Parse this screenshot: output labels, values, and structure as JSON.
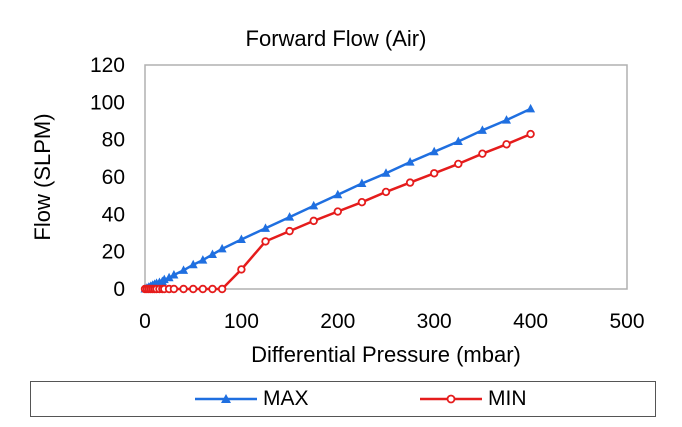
{
  "chart_data": {
    "type": "line",
    "title": "Forward Flow (Air)",
    "xlabel": "Differential Pressure (mbar)",
    "ylabel": "Flow (SLPM)",
    "xlim": [
      0,
      500
    ],
    "ylim": [
      0,
      120
    ],
    "xticks": [
      "0",
      "100",
      "200",
      "300",
      "400",
      "500"
    ],
    "yticks": [
      "0",
      "20",
      "40",
      "60",
      "80",
      "100",
      "120"
    ],
    "grid": false,
    "legend_position": "bottom",
    "series": [
      {
        "name": "MAX",
        "color": "#1f6fe0",
        "marker": "triangle",
        "x": [
          0,
          2,
          4,
          6,
          8,
          10,
          12,
          15,
          18,
          20,
          25,
          30,
          40,
          50,
          60,
          70,
          80,
          100,
          125,
          150,
          175,
          200,
          225,
          250,
          275,
          300,
          325,
          350,
          375,
          400
        ],
        "y": [
          0,
          0.5,
          1,
          1.5,
          2,
          2.5,
          3,
          3.5,
          4,
          5,
          6,
          7.5,
          10,
          13,
          15.5,
          18.5,
          21.5,
          26.5,
          32.5,
          38.5,
          44.5,
          50.5,
          56.5,
          62,
          68,
          73.5,
          79,
          85,
          90.5,
          96.5
        ]
      },
      {
        "name": "MIN",
        "color": "#e51c1c",
        "marker": "circle",
        "x": [
          0,
          2,
          4,
          6,
          8,
          10,
          12,
          15,
          18,
          20,
          25,
          30,
          40,
          50,
          60,
          70,
          80,
          100,
          125,
          150,
          175,
          200,
          225,
          250,
          275,
          300,
          325,
          350,
          375,
          400
        ],
        "y": [
          0,
          0,
          0,
          0,
          0,
          0,
          0,
          0,
          0,
          0,
          0,
          0,
          0,
          0,
          0,
          0,
          0,
          10.5,
          25.5,
          31,
          36.5,
          41.5,
          46.5,
          52,
          57,
          62,
          67,
          72.5,
          77.5,
          83
        ]
      }
    ]
  }
}
